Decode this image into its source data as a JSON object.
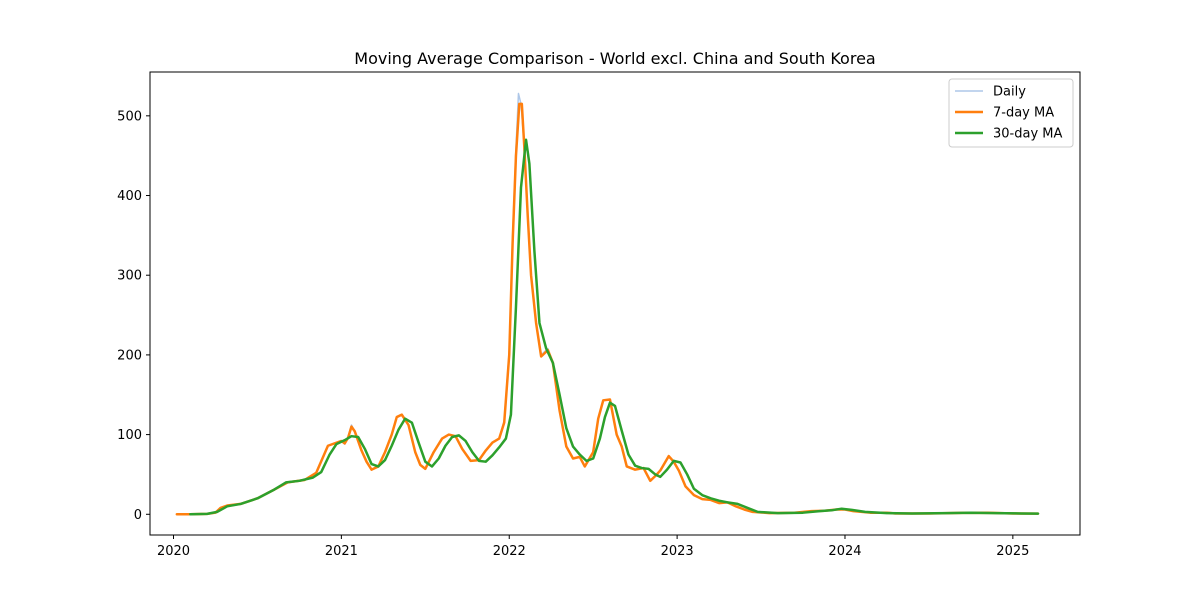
{
  "chart_data": {
    "type": "line",
    "title": "Moving Average Comparison - World excl. China and South Korea",
    "xlabel": "",
    "ylabel": "",
    "xlim": [
      2019.86,
      2025.4
    ],
    "ylim": [
      -26,
      555
    ],
    "x_ticks": [
      {
        "value": 2020,
        "label": "2020"
      },
      {
        "value": 2021,
        "label": "2021"
      },
      {
        "value": 2022,
        "label": "2022"
      },
      {
        "value": 2023,
        "label": "2023"
      },
      {
        "value": 2024,
        "label": "2024"
      },
      {
        "value": 2025,
        "label": "2025"
      }
    ],
    "y_ticks": [
      {
        "value": 0,
        "label": "0"
      },
      {
        "value": 100,
        "label": "100"
      },
      {
        "value": 200,
        "label": "200"
      },
      {
        "value": 300,
        "label": "300"
      },
      {
        "value": 400,
        "label": "400"
      },
      {
        "value": 500,
        "label": "500"
      }
    ],
    "grid": false,
    "legend_position": "top-right",
    "series": [
      {
        "name": "Daily",
        "color": "#aec7e8",
        "stroke": "thin",
        "points": [
          [
            2020.02,
            0
          ],
          [
            2020.1,
            0
          ],
          [
            2020.2,
            0.5
          ],
          [
            2020.25,
            2
          ],
          [
            2020.28,
            8
          ],
          [
            2020.32,
            11
          ],
          [
            2020.4,
            13
          ],
          [
            2020.5,
            20
          ],
          [
            2020.6,
            31
          ],
          [
            2020.68,
            40
          ],
          [
            2020.78,
            43
          ],
          [
            2020.85,
            52
          ],
          [
            2020.92,
            86
          ],
          [
            2021.0,
            92
          ],
          [
            2021.02,
            88
          ],
          [
            2021.04,
            97
          ],
          [
            2021.06,
            112
          ],
          [
            2021.08,
            104
          ],
          [
            2021.12,
            80
          ],
          [
            2021.15,
            66
          ],
          [
            2021.18,
            56
          ],
          [
            2021.22,
            60
          ],
          [
            2021.26,
            78
          ],
          [
            2021.3,
            100
          ],
          [
            2021.33,
            122
          ],
          [
            2021.36,
            125
          ],
          [
            2021.4,
            112
          ],
          [
            2021.44,
            78
          ],
          [
            2021.47,
            62
          ],
          [
            2021.5,
            57
          ],
          [
            2021.55,
            78
          ],
          [
            2021.6,
            95
          ],
          [
            2021.64,
            100
          ],
          [
            2021.68,
            98
          ],
          [
            2021.72,
            82
          ],
          [
            2021.77,
            67
          ],
          [
            2021.82,
            68
          ],
          [
            2021.86,
            80
          ],
          [
            2021.9,
            90
          ],
          [
            2021.94,
            95
          ],
          [
            2021.97,
            118
          ],
          [
            2022.0,
            205
          ],
          [
            2022.02,
            350
          ],
          [
            2022.04,
            460
          ],
          [
            2022.055,
            528
          ],
          [
            2022.07,
            515
          ],
          [
            2022.09,
            460
          ],
          [
            2022.11,
            375
          ],
          [
            2022.13,
            300
          ],
          [
            2022.16,
            240
          ],
          [
            2022.19,
            200
          ],
          [
            2022.23,
            208
          ],
          [
            2022.26,
            190
          ],
          [
            2022.3,
            130
          ],
          [
            2022.34,
            85
          ],
          [
            2022.38,
            70
          ],
          [
            2022.42,
            72
          ],
          [
            2022.45,
            60
          ],
          [
            2022.5,
            78
          ],
          [
            2022.53,
            120
          ],
          [
            2022.56,
            143
          ],
          [
            2022.6,
            144
          ],
          [
            2022.64,
            100
          ],
          [
            2022.67,
            85
          ],
          [
            2022.7,
            60
          ],
          [
            2022.75,
            56
          ],
          [
            2022.8,
            58
          ],
          [
            2022.84,
            42
          ],
          [
            2022.87,
            48
          ],
          [
            2022.9,
            55
          ],
          [
            2022.95,
            73
          ],
          [
            2022.98,
            66
          ],
          [
            2023.01,
            55
          ],
          [
            2023.05,
            35
          ],
          [
            2023.1,
            24
          ],
          [
            2023.15,
            19
          ],
          [
            2023.2,
            18
          ],
          [
            2023.25,
            14
          ],
          [
            2023.3,
            15
          ],
          [
            2023.35,
            10
          ],
          [
            2023.4,
            6
          ],
          [
            2023.45,
            3
          ],
          [
            2023.55,
            1.5
          ],
          [
            2023.7,
            2
          ],
          [
            2023.8,
            4
          ],
          [
            2023.88,
            4.5
          ],
          [
            2023.95,
            6
          ],
          [
            2024.0,
            6
          ],
          [
            2024.05,
            4
          ],
          [
            2024.15,
            2
          ],
          [
            2024.25,
            2
          ],
          [
            2024.3,
            1
          ],
          [
            2024.5,
            1
          ],
          [
            2024.7,
            1.8
          ],
          [
            2024.85,
            2
          ],
          [
            2025.0,
            1
          ],
          [
            2025.15,
            0.8
          ]
        ]
      },
      {
        "name": "7-day MA",
        "color": "#ff7f0e",
        "stroke": "medium",
        "points": [
          [
            2020.02,
            0
          ],
          [
            2020.1,
            0
          ],
          [
            2020.2,
            0.5
          ],
          [
            2020.25,
            2
          ],
          [
            2020.28,
            8
          ],
          [
            2020.32,
            11
          ],
          [
            2020.4,
            13
          ],
          [
            2020.5,
            20
          ],
          [
            2020.6,
            31
          ],
          [
            2020.68,
            40
          ],
          [
            2020.78,
            43
          ],
          [
            2020.85,
            52
          ],
          [
            2020.92,
            86
          ],
          [
            2021.0,
            92
          ],
          [
            2021.02,
            89
          ],
          [
            2021.04,
            96
          ],
          [
            2021.06,
            110
          ],
          [
            2021.08,
            104
          ],
          [
            2021.12,
            80
          ],
          [
            2021.15,
            66
          ],
          [
            2021.18,
            56
          ],
          [
            2021.22,
            60
          ],
          [
            2021.26,
            78
          ],
          [
            2021.3,
            100
          ],
          [
            2021.33,
            122
          ],
          [
            2021.36,
            125
          ],
          [
            2021.4,
            112
          ],
          [
            2021.44,
            78
          ],
          [
            2021.47,
            62
          ],
          [
            2021.5,
            57
          ],
          [
            2021.55,
            78
          ],
          [
            2021.6,
            95
          ],
          [
            2021.64,
            100
          ],
          [
            2021.68,
            98
          ],
          [
            2021.72,
            82
          ],
          [
            2021.77,
            67
          ],
          [
            2021.82,
            68
          ],
          [
            2021.86,
            80
          ],
          [
            2021.9,
            90
          ],
          [
            2021.94,
            95
          ],
          [
            2021.97,
            115
          ],
          [
            2022.0,
            200
          ],
          [
            2022.02,
            340
          ],
          [
            2022.04,
            450
          ],
          [
            2022.06,
            515
          ],
          [
            2022.075,
            515
          ],
          [
            2022.09,
            460
          ],
          [
            2022.11,
            375
          ],
          [
            2022.13,
            300
          ],
          [
            2022.16,
            240
          ],
          [
            2022.19,
            198
          ],
          [
            2022.23,
            206
          ],
          [
            2022.26,
            190
          ],
          [
            2022.3,
            130
          ],
          [
            2022.34,
            85
          ],
          [
            2022.38,
            70
          ],
          [
            2022.42,
            72
          ],
          [
            2022.45,
            60
          ],
          [
            2022.5,
            78
          ],
          [
            2022.53,
            120
          ],
          [
            2022.56,
            143
          ],
          [
            2022.6,
            144
          ],
          [
            2022.64,
            100
          ],
          [
            2022.67,
            85
          ],
          [
            2022.7,
            60
          ],
          [
            2022.75,
            56
          ],
          [
            2022.8,
            58
          ],
          [
            2022.84,
            42
          ],
          [
            2022.87,
            48
          ],
          [
            2022.9,
            55
          ],
          [
            2022.95,
            73
          ],
          [
            2022.98,
            66
          ],
          [
            2023.01,
            55
          ],
          [
            2023.05,
            35
          ],
          [
            2023.1,
            24
          ],
          [
            2023.15,
            19
          ],
          [
            2023.2,
            18
          ],
          [
            2023.25,
            14
          ],
          [
            2023.3,
            15
          ],
          [
            2023.35,
            10
          ],
          [
            2023.4,
            6
          ],
          [
            2023.45,
            3
          ],
          [
            2023.55,
            1.5
          ],
          [
            2023.7,
            2
          ],
          [
            2023.8,
            4
          ],
          [
            2023.88,
            4.5
          ],
          [
            2023.95,
            6
          ],
          [
            2024.0,
            6
          ],
          [
            2024.05,
            4
          ],
          [
            2024.15,
            2
          ],
          [
            2024.25,
            2
          ],
          [
            2024.3,
            1
          ],
          [
            2024.5,
            1
          ],
          [
            2024.7,
            1.8
          ],
          [
            2024.85,
            2
          ],
          [
            2025.0,
            1
          ],
          [
            2025.15,
            0.8
          ]
        ]
      },
      {
        "name": "30-day MA",
        "color": "#2ca02c",
        "stroke": "medium",
        "points": [
          [
            2020.1,
            0
          ],
          [
            2020.2,
            0.5
          ],
          [
            2020.26,
            3
          ],
          [
            2020.32,
            10
          ],
          [
            2020.4,
            13
          ],
          [
            2020.5,
            20
          ],
          [
            2020.6,
            31
          ],
          [
            2020.67,
            40
          ],
          [
            2020.75,
            42
          ],
          [
            2020.83,
            46
          ],
          [
            2020.88,
            53
          ],
          [
            2020.93,
            75
          ],
          [
            2020.97,
            88
          ],
          [
            2021.02,
            93
          ],
          [
            2021.06,
            98
          ],
          [
            2021.1,
            97
          ],
          [
            2021.14,
            82
          ],
          [
            2021.18,
            63
          ],
          [
            2021.22,
            60
          ],
          [
            2021.26,
            68
          ],
          [
            2021.3,
            86
          ],
          [
            2021.34,
            106
          ],
          [
            2021.38,
            120
          ],
          [
            2021.42,
            115
          ],
          [
            2021.46,
            90
          ],
          [
            2021.5,
            66
          ],
          [
            2021.54,
            60
          ],
          [
            2021.58,
            70
          ],
          [
            2021.62,
            86
          ],
          [
            2021.66,
            97
          ],
          [
            2021.7,
            99
          ],
          [
            2021.74,
            92
          ],
          [
            2021.78,
            78
          ],
          [
            2021.82,
            67
          ],
          [
            2021.86,
            66
          ],
          [
            2021.9,
            74
          ],
          [
            2021.94,
            84
          ],
          [
            2021.98,
            95
          ],
          [
            2022.01,
            125
          ],
          [
            2022.04,
            260
          ],
          [
            2022.07,
            410
          ],
          [
            2022.1,
            470
          ],
          [
            2022.12,
            440
          ],
          [
            2022.15,
            330
          ],
          [
            2022.18,
            240
          ],
          [
            2022.22,
            208
          ],
          [
            2022.26,
            190
          ],
          [
            2022.3,
            150
          ],
          [
            2022.34,
            108
          ],
          [
            2022.38,
            85
          ],
          [
            2022.42,
            75
          ],
          [
            2022.46,
            67
          ],
          [
            2022.5,
            70
          ],
          [
            2022.54,
            95
          ],
          [
            2022.57,
            122
          ],
          [
            2022.6,
            140
          ],
          [
            2022.63,
            136
          ],
          [
            2022.67,
            105
          ],
          [
            2022.71,
            75
          ],
          [
            2022.75,
            61
          ],
          [
            2022.79,
            58
          ],
          [
            2022.83,
            57
          ],
          [
            2022.87,
            50
          ],
          [
            2022.9,
            47
          ],
          [
            2022.94,
            56
          ],
          [
            2022.98,
            67
          ],
          [
            2023.02,
            65
          ],
          [
            2023.06,
            50
          ],
          [
            2023.1,
            32
          ],
          [
            2023.15,
            24
          ],
          [
            2023.2,
            20
          ],
          [
            2023.25,
            17
          ],
          [
            2023.3,
            15
          ],
          [
            2023.36,
            13
          ],
          [
            2023.42,
            8
          ],
          [
            2023.48,
            3
          ],
          [
            2023.6,
            1.5
          ],
          [
            2023.75,
            2
          ],
          [
            2023.85,
            4
          ],
          [
            2023.92,
            5
          ],
          [
            2023.98,
            7
          ],
          [
            2024.04,
            5.5
          ],
          [
            2024.12,
            3
          ],
          [
            2024.25,
            1.5
          ],
          [
            2024.4,
            1
          ],
          [
            2024.6,
            1.5
          ],
          [
            2024.75,
            2
          ],
          [
            2024.9,
            1.5
          ],
          [
            2025.05,
            1
          ],
          [
            2025.15,
            0.8
          ]
        ]
      }
    ]
  }
}
